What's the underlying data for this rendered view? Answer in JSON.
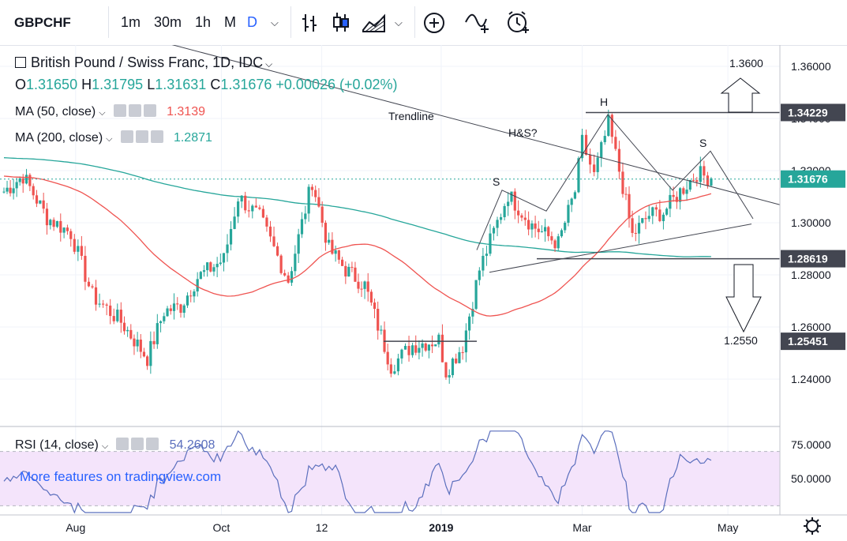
{
  "toolbar": {
    "symbol": "GBPCHF",
    "intervals": [
      "1m",
      "30m",
      "1h",
      "M",
      "D"
    ],
    "active_interval": "D",
    "icons": [
      "chevron-down-icon",
      "bar-style-icon",
      "candle-style-icon",
      "area-style-icon",
      "add-compare-icon",
      "indicators-icon",
      "alert-icon"
    ]
  },
  "legend": {
    "title": "British Pound / Swiss Franc, 1D, IDC",
    "ohlc": {
      "o_label": "O",
      "o": "1.31650",
      "h_label": "H",
      "h": "1.31795",
      "l_label": "L",
      "l": "1.31631",
      "c_label": "C",
      "c": "1.31676",
      "change": "+0.00026 (+0.02%)"
    },
    "ma50": {
      "label": "MA (50, close)",
      "value": "1.3139"
    },
    "ma200": {
      "label": "MA (200, close)",
      "value": "1.2871"
    },
    "rsi": {
      "label": "RSI (14, close)",
      "value": "54.2608"
    }
  },
  "annotations": {
    "trendline": "Trendline",
    "hs": "H&S?",
    "left_shoulder": "S",
    "head": "H",
    "right_shoulder": "S",
    "target_up": "1.3600",
    "target_down": "1.2550",
    "watermark": "More features on tradingview.com"
  },
  "price_axis": {
    "ticks": [
      "1.36000",
      "1.34000",
      "1.32000",
      "1.30000",
      "1.28000",
      "1.26000",
      "1.24000"
    ],
    "tags": [
      {
        "text": "1.34229",
        "value": 1.34229,
        "style": "dark"
      },
      {
        "text": "1.31676",
        "value": 1.31676,
        "style": "teal"
      },
      {
        "text": "1.28619",
        "value": 1.28619,
        "style": "dark"
      },
      {
        "text": "1.25451",
        "value": 1.25451,
        "style": "dark"
      }
    ]
  },
  "rsi_axis": {
    "ticks": [
      "75.0000",
      "50.0000"
    ]
  },
  "time_axis": {
    "labels": [
      "Aug",
      "Oct",
      "12",
      "2019",
      "Mar",
      "May"
    ],
    "bold": "2019"
  },
  "colors": {
    "up": "#26a69a",
    "down": "#ef5350",
    "ma50": "#ef5350",
    "ma200": "#26a69a",
    "rsi_line": "#5b6fbd",
    "rsi_band": "#f4e4fb",
    "last_price": "#26a69a"
  },
  "chart_data": {
    "type": "candlestick",
    "symbol": "GBPCHF",
    "timeframe": "1D",
    "y_range": [
      1.228,
      1.37
    ],
    "daily_close": [
      {
        "date": "2018-07-02",
        "close": 1.312
      },
      {
        "date": "2018-07-10",
        "close": 1.318
      },
      {
        "date": "2018-07-20",
        "close": 1.302
      },
      {
        "date": "2018-07-30",
        "close": 1.296
      },
      {
        "date": "2018-08-08",
        "close": 1.272
      },
      {
        "date": "2018-08-20",
        "close": 1.262
      },
      {
        "date": "2018-08-31",
        "close": 1.248
      },
      {
        "date": "2018-09-07",
        "close": 1.266
      },
      {
        "date": "2018-09-14",
        "close": 1.268
      },
      {
        "date": "2018-09-21",
        "close": 1.279
      },
      {
        "date": "2018-10-02",
        "close": 1.286
      },
      {
        "date": "2018-10-08",
        "close": 1.31
      },
      {
        "date": "2018-10-17",
        "close": 1.302
      },
      {
        "date": "2018-10-29",
        "close": 1.278
      },
      {
        "date": "2018-11-08",
        "close": 1.316
      },
      {
        "date": "2018-11-15",
        "close": 1.29
      },
      {
        "date": "2018-11-22",
        "close": 1.282
      },
      {
        "date": "2018-11-30",
        "close": 1.276
      },
      {
        "date": "2018-12-11",
        "close": 1.245
      },
      {
        "date": "2018-12-20",
        "close": 1.253
      },
      {
        "date": "2018-12-31",
        "close": 1.255
      },
      {
        "date": "2019-01-03",
        "close": 1.243
      },
      {
        "date": "2019-01-10",
        "close": 1.253
      },
      {
        "date": "2019-01-17",
        "close": 1.282
      },
      {
        "date": "2019-01-29",
        "close": 1.311
      },
      {
        "date": "2019-02-08",
        "close": 1.299
      },
      {
        "date": "2019-02-19",
        "close": 1.292
      },
      {
        "date": "2019-02-26",
        "close": 1.312
      },
      {
        "date": "2019-03-01",
        "close": 1.331
      },
      {
        "date": "2019-03-06",
        "close": 1.318
      },
      {
        "date": "2019-03-12",
        "close": 1.338
      },
      {
        "date": "2019-03-18",
        "close": 1.314
      },
      {
        "date": "2019-03-22",
        "close": 1.295
      },
      {
        "date": "2019-03-29",
        "close": 1.303
      },
      {
        "date": "2019-04-04",
        "close": 1.304
      },
      {
        "date": "2019-04-11",
        "close": 1.312
      },
      {
        "date": "2019-04-18",
        "close": 1.319
      },
      {
        "date": "2019-04-24",
        "close": 1.317
      }
    ],
    "last": {
      "open": 1.3165,
      "high": 1.31795,
      "low": 1.31631,
      "close": 1.31676,
      "change": 0.00026,
      "change_pct": 0.02
    },
    "levels": [
      1.34229,
      1.31676,
      1.28619,
      1.25451
    ],
    "targets": {
      "up": 1.36,
      "down": 1.255
    },
    "ma50_current": 1.3139,
    "ma200_current": 1.2871,
    "rsi_current": 54.2608,
    "rsi_range": [
      25,
      85
    ]
  }
}
